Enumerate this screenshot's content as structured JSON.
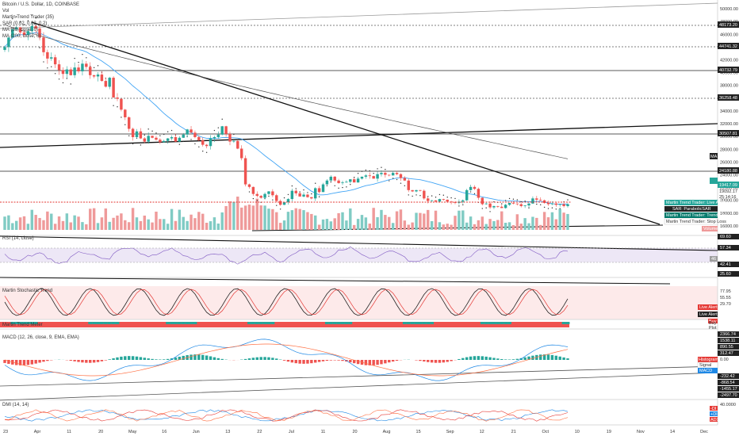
{
  "chart_data": {
    "type": "candlestick",
    "symbol": "Bitcoin / U.S. Dollar, 1D, COINBASE",
    "legend": {
      "main": [
        "Bitcoin / U.S. Dollar, 1D, COINBASE",
        "Vol",
        "Martin Trend Trader (35)",
        "SAR (0.02, 0.02, 0.2)",
        "MA (50, close, 0)",
        "MA (200, close, 0)"
      ],
      "rsi": "RSI (14, close)",
      "stoch": "Martin Stochastic Trend",
      "mtm": "Martin Trend Meter",
      "macd": "MACD (12, 26, close, 9, EMA, EMA)",
      "dmi": "DMI (14, 14)"
    },
    "x_ticks": [
      "23",
      "Apr",
      "11",
      "20",
      "May",
      "16",
      "Jun",
      "13",
      "22",
      "Jul",
      "11",
      "20",
      "Aug",
      "15",
      "Sep",
      "12",
      "21",
      "Oct",
      "10",
      "19",
      "Nov",
      "14",
      "Dec"
    ],
    "price_ticks": [
      "50000.00",
      "48000.00",
      "46000.00",
      "44000.00",
      "42000.00",
      "40000.00",
      "38000.00",
      "36000.00",
      "34000.00",
      "32000.00",
      "30000.00",
      "28000.00",
      "26000.00",
      "24000.00",
      "22000.00",
      "20000.00",
      "18000.00",
      "16000.00"
    ],
    "price_ylim": [
      15000,
      51000
    ],
    "level_labels": [
      "48173.20",
      "44741.32",
      "40732.79",
      "36258.48",
      "30507.81",
      "24180.88"
    ],
    "current_price": "19417.09",
    "price_tags": [
      "19092.17",
      "25:14:16"
    ],
    "ma_badge": "MA",
    "indicator_tags": [
      "Martin Trend Trader: Live Alert",
      "SAR: ParabolicSAR",
      "Martin Trend Trader: Trend Line",
      "Martin Trend Trader: Stop Loss",
      "Volume"
    ],
    "rsi_ticks": [
      "69.60",
      "57.34",
      "42.41",
      "25.60"
    ],
    "rsi_badge": "46",
    "stoch_ticks": [
      "77.95",
      "55.55",
      "29.70"
    ],
    "stoch_tags": [
      "Live Alert",
      "Live Alert",
      "Buy"
    ],
    "mtm_tags": [
      "Buy",
      "Plot"
    ],
    "macd_ticks": [
      "2366.74",
      "1538.11",
      "890.55",
      "312.47",
      "0.00",
      "-232.42",
      "-868.54",
      "-1455.17",
      "-2497.70"
    ],
    "macd_tags": [
      "Histogram",
      "Signal",
      "MACD"
    ],
    "dmi_ticks": [
      "40.0000"
    ],
    "dmi_tags": [
      "-DI",
      "+DI",
      "ADX"
    ],
    "close_series": [
      44000,
      45500,
      46800,
      47100,
      46300,
      45900,
      46500,
      47300,
      46900,
      45500,
      43200,
      42200,
      42400,
      41300,
      40400,
      39800,
      40500,
      39600,
      40800,
      40200,
      41400,
      40900,
      39600,
      39400,
      39700,
      38700,
      37800,
      39200,
      36100,
      35900,
      34200,
      33000,
      31200,
      29900,
      30800,
      29700,
      29200,
      30100,
      29800,
      29500,
      29100,
      29300,
      29700,
      29900,
      29200,
      29800,
      30300,
      31100,
      30600,
      29900,
      29400,
      28700,
      28500,
      29700,
      29900,
      30300,
      31600,
      30400,
      29200,
      29300,
      28100,
      26600,
      22500,
      22100,
      21000,
      20700,
      20400,
      21000,
      21400,
      20800,
      19900,
      19300,
      19700,
      20200,
      21500,
      21100,
      20600,
      20900,
      20500,
      20300,
      21900,
      21300,
      22500,
      23100,
      23700,
      23100,
      22700,
      22800,
      22900,
      23300,
      22800,
      23400,
      23700,
      23900,
      23800,
      23400,
      24100,
      24300,
      24000,
      23900,
      24300,
      24100,
      23500,
      23100,
      21600,
      21400,
      21600,
      21500,
      20300,
      19900,
      20000,
      19800,
      20200,
      20100,
      19800,
      19700,
      19600,
      19800,
      20000,
      21600,
      22100,
      21800,
      20400,
      19400,
      19500,
      18900,
      19100,
      19000,
      18800,
      19300,
      19600,
      19500,
      19400,
      19100,
      19200,
      19500,
      20300,
      20100,
      20000,
      19600,
      19400,
      19500,
      19300,
      19400,
      19100,
      19400
    ]
  }
}
